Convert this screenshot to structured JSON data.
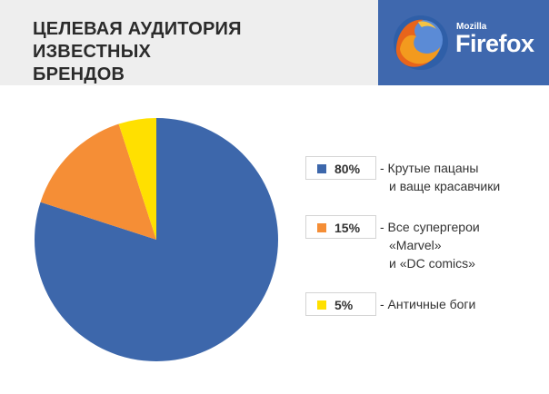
{
  "header": {
    "title_line1": "ЦЕЛЕВАЯ АУДИТОРИЯ ИЗВЕСТНЫХ",
    "title_line2": "БРЕНДОВ"
  },
  "brand": {
    "small": "Mozilla",
    "big": "Firefox",
    "logo_icon": "firefox-logo-icon",
    "background": "#3f68ae"
  },
  "chart_data": {
    "type": "pie",
    "title": "ЦЕЛЕВАЯ АУДИТОРИЯ ИЗВЕСТНЫХ БРЕНДОВ",
    "slices": [
      {
        "value": 80,
        "label": "80%",
        "description": [
          "- Крутые пацаны",
          "и ваще красавчики"
        ],
        "color": "#3d67ab"
      },
      {
        "value": 15,
        "label": "15%",
        "description": [
          "- Все супергерои",
          "«Marvel»",
          "и «DC comics»"
        ],
        "color": "#f58e36"
      },
      {
        "value": 5,
        "label": "5%",
        "description": [
          "- Античные боги"
        ],
        "color": "#ffe000"
      }
    ],
    "legend_position": "right"
  }
}
